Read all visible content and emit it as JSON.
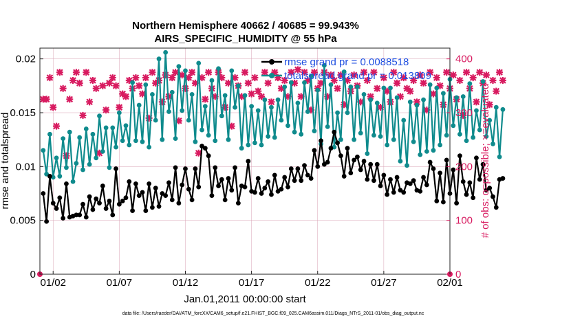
{
  "figure": {
    "title_line1": "Northern Hemisphere 40662 / 40685 = 99.943%",
    "title_line2": "AIRS_SPECIFIC_HUMIDITY @ 55 hPa",
    "footnote": "data file: /Users/raeder/DAI/ATM_forcXX/CAM6_setup/f.e21.FHIST_BGC.f09_025.CAM6assim.011/Diags_NTrS_2011-01/obs_diag_output.nc"
  },
  "chart_data": {
    "type": "line",
    "title": "Northern Hemisphere 40662 / 40685 = 99.943%",
    "subtitle": "AIRS_SPECIFIC_HUMIDITY @ 55 hPa",
    "xlabel": "Jan.01,2011 00:00:00 start",
    "ylabel_left": "rmse and totalspread",
    "ylabel_right": "# of obs: o=possible; ×=evaluated",
    "x_ticks": [
      "01/02",
      "01/07",
      "01/12",
      "01/17",
      "01/22",
      "01/27",
      "02/01"
    ],
    "x_tick_days": [
      1,
      6,
      11,
      16,
      21,
      26,
      31
    ],
    "xlim_days": [
      0,
      31
    ],
    "ylim_left": [
      0,
      0.021
    ],
    "yticks_left": [
      "0",
      "0.005",
      "0.01",
      "0.015",
      "0.02"
    ],
    "yticks_left_values": [
      0,
      0.005,
      0.01,
      0.015,
      0.02
    ],
    "ylim_right": [
      0,
      420
    ],
    "yticks_right": [
      "0",
      "100",
      "200",
      "300",
      "400"
    ],
    "yticks_right_values": [
      0,
      100,
      200,
      300,
      400
    ],
    "grid": true,
    "legend_position": "top-right",
    "x_step_days": 0.25,
    "x_start_day": 0.25,
    "series": [
      {
        "name": "rmse grand pr = 0.0088518",
        "axis": "left",
        "color": "#000000",
        "marker": "circle",
        "values": [
          0.0075,
          0.0049,
          0.0091,
          0.0066,
          0.0061,
          0.0071,
          0.0052,
          0.0084,
          0.0053,
          0.0054,
          0.0055,
          0.0055,
          0.0065,
          0.0053,
          0.0072,
          0.006,
          0.007,
          0.0066,
          0.0082,
          0.0061,
          0.0068,
          0.0055,
          0.0098,
          0.0065,
          0.0068,
          0.0071,
          0.0086,
          0.0059,
          0.0084,
          0.0073,
          0.0076,
          0.0059,
          0.0084,
          0.0062,
          0.008,
          0.0063,
          0.0075,
          0.0073,
          0.0085,
          0.0069,
          0.0099,
          0.0066,
          0.0083,
          0.0098,
          0.0079,
          0.0069,
          0.0098,
          0.0081,
          0.0119,
          0.0117,
          0.011,
          0.0073,
          0.0099,
          0.0082,
          0.0088,
          0.0069,
          0.0089,
          0.0078,
          0.0099,
          0.0066,
          0.0082,
          0.0081,
          0.0105,
          0.0077,
          0.0076,
          0.0089,
          0.0075,
          0.008,
          0.0086,
          0.0074,
          0.0092,
          0.0077,
          0.0079,
          0.009,
          0.0081,
          0.0098,
          0.0087,
          0.0098,
          0.0087,
          0.0101,
          0.0092,
          0.0089,
          0.0115,
          0.01,
          0.0124,
          0.0102,
          0.0104,
          0.0117,
          0.0132,
          0.0122,
          0.011,
          0.0091,
          0.0117,
          0.0094,
          0.0106,
          0.0109,
          0.0097,
          0.0105,
          0.0088,
          0.0102,
          0.0087,
          0.0102,
          0.0082,
          0.0092,
          0.0074,
          0.0088,
          0.0076,
          0.009,
          0.0078,
          0.0076,
          0.0085,
          0.0084,
          0.0087,
          0.0078,
          0.0077,
          0.009,
          0.0083,
          0.0104,
          0.0098,
          0.0068,
          0.0094,
          0.0067,
          0.0106,
          0.0075,
          0.0097,
          0.0066,
          0.011,
          0.0086,
          0.0074,
          0.0085,
          0.0071,
          0.0108,
          0.0088,
          0.0102,
          0.0078,
          0.008,
          0.0072,
          0.0062,
          0.0088,
          0.0089
        ]
      },
      {
        "name": "totalspread grand pr = 0.013809",
        "axis": "left",
        "color": "#0f8b8d",
        "marker": "circle",
        "values": [
          0.0115,
          0.0093,
          0.013,
          0.009,
          0.0108,
          0.0091,
          0.0126,
          0.0099,
          0.0132,
          0.0086,
          0.0103,
          0.0127,
          0.0097,
          0.0135,
          0.0102,
          0.013,
          0.0108,
          0.0147,
          0.0114,
          0.0136,
          0.0099,
          0.0136,
          0.0118,
          0.015,
          0.0124,
          0.0138,
          0.012,
          0.0178,
          0.0124,
          0.0157,
          0.0123,
          0.0176,
          0.0118,
          0.0167,
          0.0143,
          0.02,
          0.0125,
          0.0206,
          0.0151,
          0.0169,
          0.0126,
          0.0193,
          0.0152,
          0.0189,
          0.0143,
          0.0167,
          0.0123,
          0.0196,
          0.0134,
          0.0156,
          0.0129,
          0.018,
          0.0124,
          0.0191,
          0.0147,
          0.0166,
          0.0125,
          0.0189,
          0.0155,
          0.0175,
          0.0117,
          0.0166,
          0.012,
          0.0156,
          0.0122,
          0.0152,
          0.012,
          0.0162,
          0.0128,
          0.0155,
          0.0127,
          0.0162,
          0.0143,
          0.0174,
          0.0138,
          0.0178,
          0.0132,
          0.0159,
          0.013,
          0.0178,
          0.0151,
          0.0184,
          0.0133,
          0.0171,
          0.0121,
          0.0194,
          0.0137,
          0.0176,
          0.0118,
          0.015,
          0.0125,
          0.0188,
          0.015,
          0.0174,
          0.0125,
          0.0174,
          0.0131,
          0.0167,
          0.0112,
          0.0162,
          0.0129,
          0.0159,
          0.0128,
          0.0173,
          0.012,
          0.0173,
          0.0125,
          0.0164,
          0.0105,
          0.0143,
          0.0101,
          0.016,
          0.0123,
          0.0157,
          0.0111,
          0.0162,
          0.0114,
          0.0176,
          0.0115,
          0.0173,
          0.012,
          0.0168,
          0.0129,
          0.0181,
          0.0138,
          0.0164,
          0.013,
          0.0165,
          0.0124,
          0.0177,
          0.0127,
          0.0152,
          0.0134,
          0.0179,
          0.0128,
          0.0143,
          0.0121,
          0.0155,
          0.0109,
          0.0153
        ]
      },
      {
        "name": "evaluated",
        "axis": "right",
        "color": "#d81b60",
        "marker": "cross",
        "values": [
          325,
          325,
          365,
          310,
          275,
          375,
          345,
          220,
          325,
          360,
          375,
          355,
          295,
          375,
          320,
          360,
          345,
          225,
          350,
          305,
          355,
          365,
          350,
          310,
          335,
          330,
          360,
          345,
          365,
          350,
          335,
          365,
          290,
          375,
          355,
          360,
          320,
          370,
          330,
          365,
          375,
          285,
          370,
          345,
          365,
          375,
          355,
          225,
          365,
          325,
          375,
          345,
          330,
          375,
          365,
          310,
          355,
          275,
          365,
          350,
          330,
          375,
          355,
          335,
          365,
          340,
          330,
          375,
          355,
          320,
          375,
          365,
          345,
          360,
          330,
          375,
          355,
          380,
          330,
          375,
          360,
          305,
          375,
          345,
          355,
          375,
          330,
          370,
          360,
          345,
          370,
          315,
          360,
          340,
          370,
          350,
          320,
          375,
          360,
          330,
          375,
          345,
          310,
          365,
          340,
          320,
          375,
          355,
          330,
          365,
          345,
          340,
          360,
          320,
          370,
          355,
          305,
          375,
          335,
          365,
          350,
          315,
          375,
          345,
          370,
          325,
          360,
          295,
          375,
          345,
          365,
          320,
          375,
          355,
          370,
          315,
          360,
          340,
          375,
          360
        ]
      }
    ]
  }
}
